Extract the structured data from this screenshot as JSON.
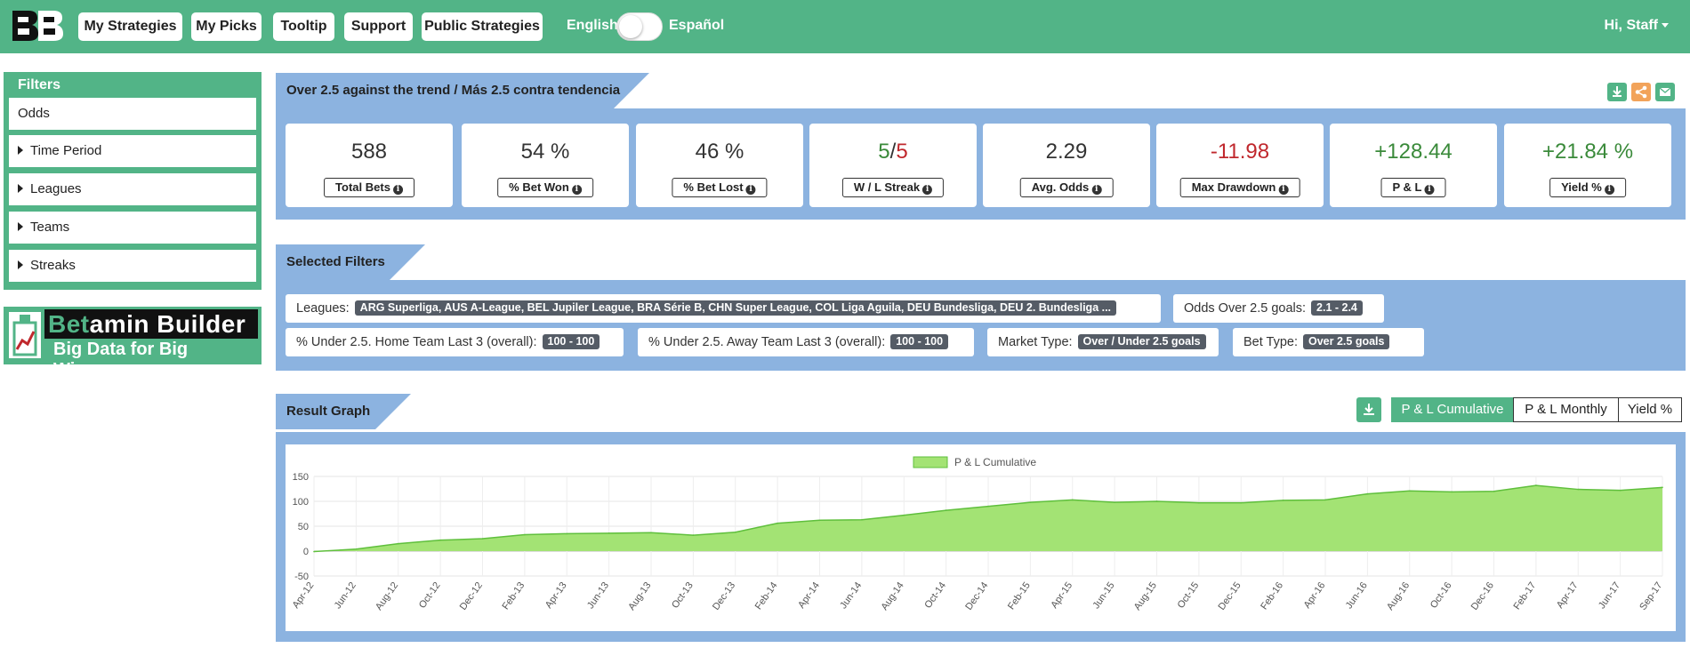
{
  "navbar": {
    "logo_name": "logo-icon",
    "buttons": [
      "My Strategies",
      "My Picks",
      "Tooltip",
      "Support",
      "Public Strategies"
    ],
    "lang_left": "English",
    "lang_right": "Español",
    "user_label": "Hi, Staff",
    "bg_color": "#52b487"
  },
  "sidebar": {
    "title": "Filters",
    "items": [
      {
        "label": "Odds",
        "expandable": false
      },
      {
        "label": "Time Period",
        "expandable": true
      },
      {
        "label": "Leagues",
        "expandable": true
      },
      {
        "label": "Teams",
        "expandable": true
      },
      {
        "label": "Streaks",
        "expandable": true
      }
    ],
    "banner": {
      "title_a": "Bet",
      "title_b": "amin Builder",
      "subtitle": "Big Data for Big Winners"
    }
  },
  "strategy": {
    "title": "Over 2.5 against the trend / Más 2.5 contra tendencia",
    "actions": [
      "download-icon",
      "share-icon",
      "mail-icon"
    ],
    "stats": [
      {
        "value": "588",
        "label": "Total Bets",
        "color": "#333333"
      },
      {
        "value": "54 %",
        "label": "% Bet Won",
        "color": "#333333"
      },
      {
        "value": "46 %",
        "label": "% Bet Lost",
        "color": "#333333"
      },
      {
        "value_won": "5",
        "value_sep": "/",
        "value_lost": "5",
        "label": "W / L Streak"
      },
      {
        "value": "2.29",
        "label": "Avg. Odds",
        "color": "#333333"
      },
      {
        "value": "-11.98",
        "label": "Max Drawdown",
        "color": "#c0282d"
      },
      {
        "value": "+128.44",
        "label": "P & L",
        "color": "#3a8a3a"
      },
      {
        "value": "+21.84 %",
        "label": "Yield %",
        "color": "#3a8a3a"
      }
    ]
  },
  "selected_filters": {
    "title": "Selected Filters",
    "chips": [
      {
        "label": "Leagues:",
        "value": "ARG Superliga, AUS A-League, BEL Jupiler League, BRA Série B, CHN Super League, COL Liga Aguila, DEU Bundesliga, DEU 2. Bundesliga ..."
      },
      {
        "label": "Odds Over 2.5 goals:",
        "value": "2.1 - 2.4"
      },
      {
        "label": "% Under 2.5. Home Team Last 3 (overall):",
        "value": "100 - 100"
      },
      {
        "label": "% Under 2.5. Away Team Last 3 (overall):",
        "value": "100 - 100"
      },
      {
        "label": "Market Type:",
        "value": "Over / Under 2.5 goals"
      },
      {
        "label": "Bet Type:",
        "value": "Over 2.5 goals"
      }
    ]
  },
  "result_graph": {
    "title": "Result Graph",
    "tabs": [
      "P & L Cumulative",
      "P & L Monthly",
      "Yield %"
    ],
    "active_tab": 0
  },
  "chart_data": {
    "type": "area",
    "title": "",
    "xlabel": "",
    "ylabel": "",
    "legend": "top-center",
    "grid": true,
    "ylim": [
      -50,
      150
    ],
    "yticks": [
      150,
      100,
      50,
      0,
      -50
    ],
    "fill_color": "#a3e374",
    "line_color": "#5fbf3c",
    "series": [
      {
        "name": "P & L Cumulative"
      }
    ],
    "x": [
      "Apr-12",
      "Jun-12",
      "Aug-12",
      "Oct-12",
      "Dec-12",
      "Feb-13",
      "Apr-13",
      "Jun-13",
      "Aug-13",
      "Oct-13",
      "Dec-13",
      "Feb-14",
      "Apr-14",
      "Jun-14",
      "Aug-14",
      "Oct-14",
      "Dec-14",
      "Feb-15",
      "Apr-15",
      "Jun-15",
      "Aug-15",
      "Oct-15",
      "Dec-15",
      "Feb-16",
      "Apr-16",
      "Jun-16",
      "Aug-16",
      "Oct-16",
      "Dec-16",
      "Feb-17",
      "Apr-17",
      "Jun-17",
      "Sep-17"
    ],
    "values": [
      -1,
      4,
      15,
      22,
      25,
      33,
      35,
      36,
      37,
      32,
      38,
      56,
      62,
      63,
      72,
      82,
      90,
      98,
      103,
      98,
      100,
      97,
      97,
      102,
      103,
      115,
      121,
      119,
      120,
      132,
      124,
      122,
      128
    ]
  }
}
